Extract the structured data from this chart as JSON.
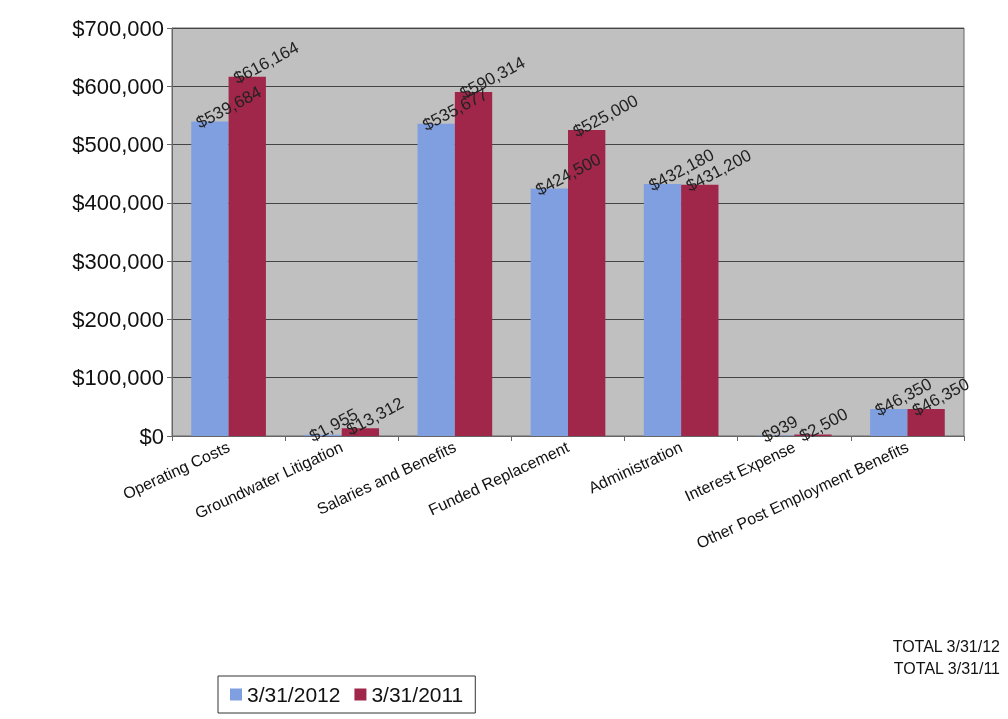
{
  "chart_data": {
    "type": "bar",
    "categories": [
      "Operating Costs",
      "Groundwater Litigation",
      "Salaries and Benefits",
      "Funded Replacement",
      "Administration",
      "Interest Expense",
      "Other Post Employment Benefits"
    ],
    "series": [
      {
        "name": "3/31/2012",
        "color": "#7f9fe0",
        "values": [
          539684,
          1955,
          535677,
          424500,
          432180,
          939,
          46350
        ],
        "value_labels": [
          "$539,684",
          "$1,955",
          "$535,677",
          "$424,500",
          "$432,180",
          "$939",
          "$46,350"
        ]
      },
      {
        "name": "3/31/2011",
        "color": "#a0264a",
        "values": [
          616164,
          13312,
          590314,
          525000,
          431200,
          2500,
          46350
        ],
        "value_labels": [
          "$616,164",
          "$13,312",
          "$590,314",
          "$525,000",
          "$431,200",
          "$2,500",
          "$46,350"
        ]
      }
    ],
    "ylim": [
      0,
      700000
    ],
    "yticks": [
      {
        "value": 0,
        "label": "$0"
      },
      {
        "value": 100000,
        "label": "$100,000"
      },
      {
        "value": 200000,
        "label": "$200,000"
      },
      {
        "value": 300000,
        "label": "$300,000"
      },
      {
        "value": 400000,
        "label": "$400,000"
      },
      {
        "value": 500000,
        "label": "$500,000"
      },
      {
        "value": 600000,
        "label": "$600,000"
      },
      {
        "value": 700000,
        "label": "$700,000"
      }
    ],
    "grid": "y",
    "legend": "bottom left",
    "annotations": [
      "TOTAL 3/31/12",
      "TOTAL 3/31/11"
    ]
  }
}
